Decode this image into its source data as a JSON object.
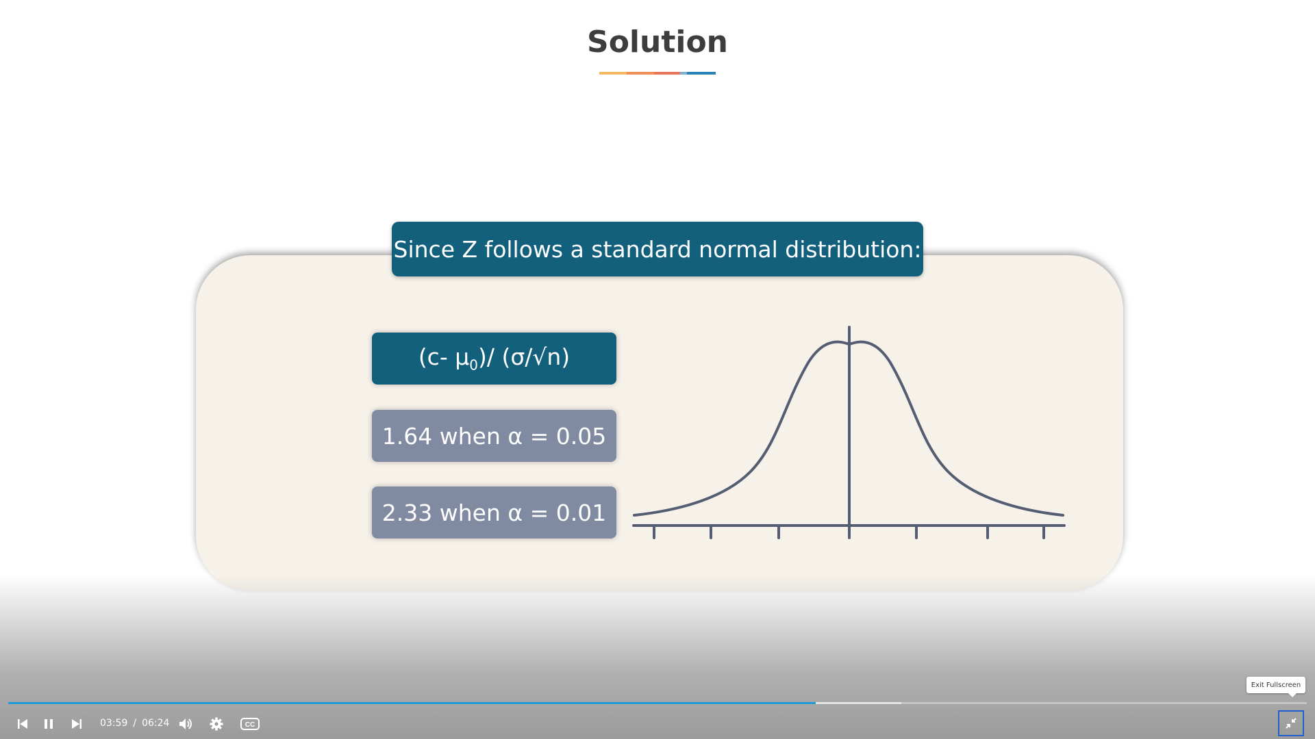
{
  "slide": {
    "title": "Solution",
    "title_underline_colors": [
      "#f6b860",
      "#f08f5a",
      "#e8775a",
      "#7fb0d0",
      "#2a82b5"
    ],
    "header": "Since Z follows a standard normal distribution:",
    "formula": {
      "main": "(c- μ",
      "subscript": "0",
      "rest": ")/ (σ/√n)"
    },
    "values": [
      "1.64 when α = 0.05",
      "2.33 when α = 0.01"
    ],
    "colors": {
      "header_bg": "#13607c",
      "value_bg": "#808aa1",
      "panel_bg": "#f6f2ea",
      "curve": "#555d72"
    }
  },
  "player": {
    "current_time": "03:59",
    "separator": "/",
    "duration": "06:24",
    "played_fraction": 0.622,
    "buffered_fraction": 0.688,
    "tooltip": "Exit Fullscreen",
    "accent": "#1e9bd7",
    "icons": [
      "previous-icon",
      "pause-icon",
      "next-icon",
      "volume-icon",
      "settings-icon",
      "cc-icon",
      "exit-fullscreen-icon"
    ]
  }
}
